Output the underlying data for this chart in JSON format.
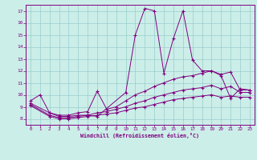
{
  "xlabel": "Windchill (Refroidissement éolien,°C)",
  "bg_color": "#cceee8",
  "line_color": "#800080",
  "grid_color": "#99cccc",
  "xlim": [
    -0.5,
    23.5
  ],
  "ylim": [
    7.5,
    17.5
  ],
  "xticks": [
    0,
    1,
    2,
    3,
    4,
    5,
    6,
    7,
    8,
    9,
    10,
    11,
    12,
    13,
    14,
    15,
    16,
    17,
    18,
    19,
    20,
    21,
    22,
    23
  ],
  "yticks": [
    8,
    9,
    10,
    11,
    12,
    13,
    14,
    15,
    16,
    17
  ],
  "series": [
    {
      "x": [
        0,
        1,
        2,
        3,
        4,
        5,
        6,
        7,
        10,
        11,
        12,
        13,
        14,
        15,
        16,
        17,
        18,
        19,
        20,
        21,
        22,
        23
      ],
      "y": [
        9.5,
        10.0,
        8.5,
        8.2,
        8.2,
        8.3,
        8.3,
        8.2,
        10.2,
        15.0,
        17.2,
        17.0,
        11.8,
        14.7,
        17.0,
        12.9,
        12.0,
        12.0,
        11.6,
        9.7,
        10.5,
        10.4
      ]
    },
    {
      "x": [
        0,
        2,
        3,
        4,
        5,
        6,
        7,
        8,
        9,
        10,
        11,
        12,
        13,
        14,
        15,
        16,
        17,
        18,
        19,
        20,
        21,
        22,
        23
      ],
      "y": [
        9.3,
        8.5,
        8.3,
        8.3,
        8.5,
        8.6,
        10.3,
        8.8,
        9.0,
        9.5,
        10.0,
        10.3,
        10.7,
        11.0,
        11.3,
        11.5,
        11.6,
        11.8,
        12.0,
        11.7,
        11.9,
        10.4,
        10.4
      ]
    },
    {
      "x": [
        0,
        2,
        3,
        4,
        5,
        6,
        7,
        8,
        9,
        10,
        11,
        12,
        13,
        14,
        15,
        16,
        17,
        18,
        19,
        20,
        21,
        22,
        23
      ],
      "y": [
        9.2,
        8.3,
        8.1,
        8.1,
        8.2,
        8.3,
        8.5,
        8.6,
        8.8,
        9.0,
        9.3,
        9.5,
        9.8,
        10.0,
        10.2,
        10.4,
        10.5,
        10.6,
        10.8,
        10.5,
        10.7,
        10.2,
        10.2
      ]
    },
    {
      "x": [
        0,
        2,
        3,
        4,
        5,
        6,
        7,
        8,
        9,
        10,
        11,
        12,
        13,
        14,
        15,
        16,
        17,
        18,
        19,
        20,
        21,
        22,
        23
      ],
      "y": [
        9.1,
        8.2,
        8.0,
        8.0,
        8.1,
        8.2,
        8.3,
        8.4,
        8.5,
        8.7,
        8.9,
        9.0,
        9.2,
        9.4,
        9.6,
        9.7,
        9.8,
        9.9,
        10.0,
        9.8,
        9.9,
        9.8,
        9.8
      ]
    }
  ]
}
